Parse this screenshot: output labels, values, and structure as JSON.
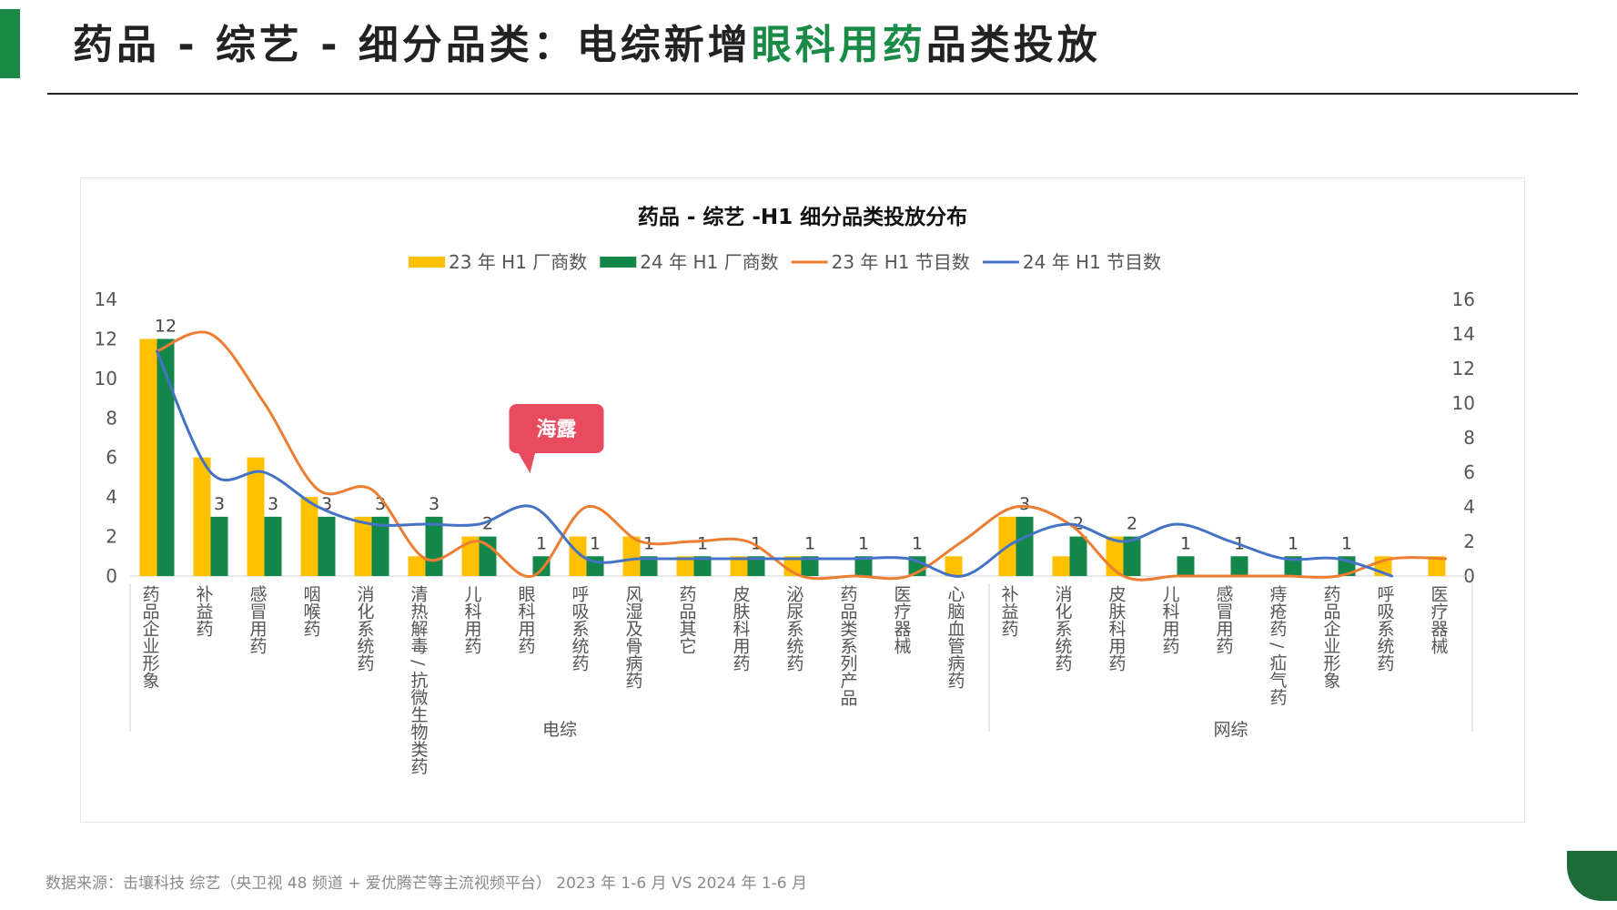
{
  "header": {
    "title_prefix": "药品 - 综艺 - 细分品类：电综新增",
    "title_highlight": "眼科用药",
    "title_suffix": "品类投放"
  },
  "colors": {
    "accent": "#1a8a47",
    "bar_23": "#ffc000",
    "bar_24": "#13874a",
    "line_23": "#ed7d31",
    "line_24": "#4472c4",
    "callout": "#e84a5f"
  },
  "callout": {
    "label": "海露"
  },
  "chart_data": {
    "type": "bar",
    "title": "药品 - 综艺 -H1 细分品类投放分布",
    "legend_position": "top",
    "y_left": {
      "min": 0,
      "max": 14,
      "ticks": [
        0,
        2,
        4,
        6,
        8,
        10,
        12,
        14
      ]
    },
    "y_right": {
      "min": 0,
      "max": 16,
      "ticks": [
        0,
        2,
        4,
        6,
        8,
        10,
        12,
        14,
        16
      ]
    },
    "groups": [
      {
        "label": "电综",
        "start": 0,
        "end": 15
      },
      {
        "label": "网综",
        "start": 16,
        "end": 24
      }
    ],
    "categories": [
      "药品企业形象",
      "补益药",
      "感冒用药",
      "咽喉药",
      "消化系统药",
      "清热解毒 / 抗微生物类药",
      "儿科用药",
      "眼科用药",
      "呼吸系统药",
      "风湿及骨病药",
      "药品其它",
      "皮肤科用药",
      "泌尿系统药",
      "药品类系列产品",
      "医疗器械",
      "心脑血管病药",
      "补益药",
      "消化系统药",
      "皮肤科用药",
      "儿科用药",
      "感冒用药",
      "痔疮药 / 疝气药",
      "药品企业形象",
      "呼吸系统药",
      "医疗器械"
    ],
    "series": [
      {
        "name": "23 年 H1 厂商数",
        "type": "bar",
        "axis": "left",
        "values": [
          12,
          6,
          6,
          4,
          3,
          1,
          2,
          0,
          2,
          2,
          1,
          1,
          1,
          0,
          0,
          1,
          3,
          1,
          2,
          0,
          0,
          0,
          0,
          1,
          1
        ]
      },
      {
        "name": "24 年 H1 厂商数",
        "type": "bar",
        "axis": "left",
        "values": [
          12,
          3,
          3,
          3,
          3,
          3,
          2,
          1,
          1,
          1,
          1,
          1,
          1,
          1,
          1,
          0,
          3,
          2,
          2,
          1,
          1,
          1,
          1,
          0,
          0
        ],
        "labels": [
          "12",
          "3",
          "3",
          "3",
          "3",
          "3",
          "2",
          "1",
          "1",
          "1",
          "1",
          "1",
          "1",
          "1",
          "1",
          "",
          "3",
          "2",
          "2",
          "1",
          "1",
          "1",
          "1",
          "",
          ""
        ]
      },
      {
        "name": "23 年 H1 节目数",
        "type": "line",
        "axis": "right",
        "values": [
          13,
          14,
          10,
          5,
          5,
          1,
          2,
          0,
          4,
          2,
          2,
          2,
          0,
          0,
          0,
          2,
          4,
          3,
          0,
          0,
          0,
          0,
          0,
          1,
          1
        ]
      },
      {
        "name": "24 年 H1 节目数",
        "type": "line",
        "axis": "right",
        "values": [
          13,
          6,
          6,
          4,
          3,
          3,
          3,
          4,
          1,
          1,
          1,
          1,
          1,
          1,
          1,
          0,
          2,
          3,
          2,
          3,
          2,
          1,
          1,
          0,
          null
        ]
      }
    ]
  },
  "footer": {
    "source": "数据来源：击壤科技    综艺（央卫视 48 频道 + 爱优腾芒等主流视频平台）   2023 年 1-6 月  VS 2024 年 1-6 月"
  }
}
